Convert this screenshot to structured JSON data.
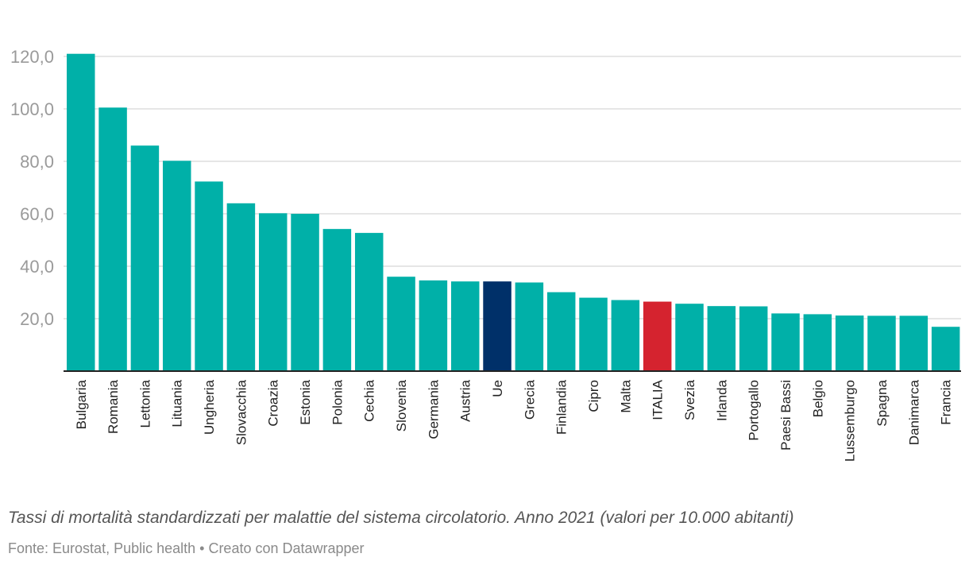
{
  "chart_data": {
    "type": "bar",
    "categories": [
      "Bulgaria",
      "Romania",
      "Lettonia",
      "Lituania",
      "Ungheria",
      "Slovacchia",
      "Croazia",
      "Estonia",
      "Polonia",
      "Cechia",
      "Slovenia",
      "Germania",
      "Austria",
      "Ue",
      "Grecia",
      "Finlandia",
      "Cipro",
      "Malta",
      "ITALIA",
      "Svezia",
      "Irlanda",
      "Portogallo",
      "Paesi Bassi",
      "Belgio",
      "Lussemburgo",
      "Spagna",
      "Danimarca",
      "Francia"
    ],
    "values": [
      121.0,
      100.5,
      86.0,
      80.2,
      72.3,
      64.0,
      60.2,
      60.0,
      54.2,
      52.7,
      36.0,
      34.6,
      34.2,
      34.2,
      33.8,
      30.1,
      28.0,
      27.1,
      26.5,
      25.7,
      24.8,
      24.7,
      22.0,
      21.7,
      21.2,
      21.1,
      21.1,
      16.9
    ],
    "highlights": {
      "Ue": "#003069",
      "ITALIA": "#d5232f"
    },
    "default_color": "#00b0a8",
    "ylim": [
      0,
      120
    ],
    "yticks": [
      20,
      40,
      60,
      80,
      100,
      120
    ],
    "ytick_labels": [
      "20,0",
      "40,0",
      "60,0",
      "80,0",
      "100,0",
      "120,0"
    ],
    "title": "",
    "xlabel": "",
    "ylabel": "",
    "grid": true
  },
  "caption": "Tassi di mortalità standardizzati per malattie del sistema circolatorio. Anno 2021 (valori per 10.000 abitanti)",
  "source": "Fonte: Eurostat, Public health • Creato con Datawrapper"
}
